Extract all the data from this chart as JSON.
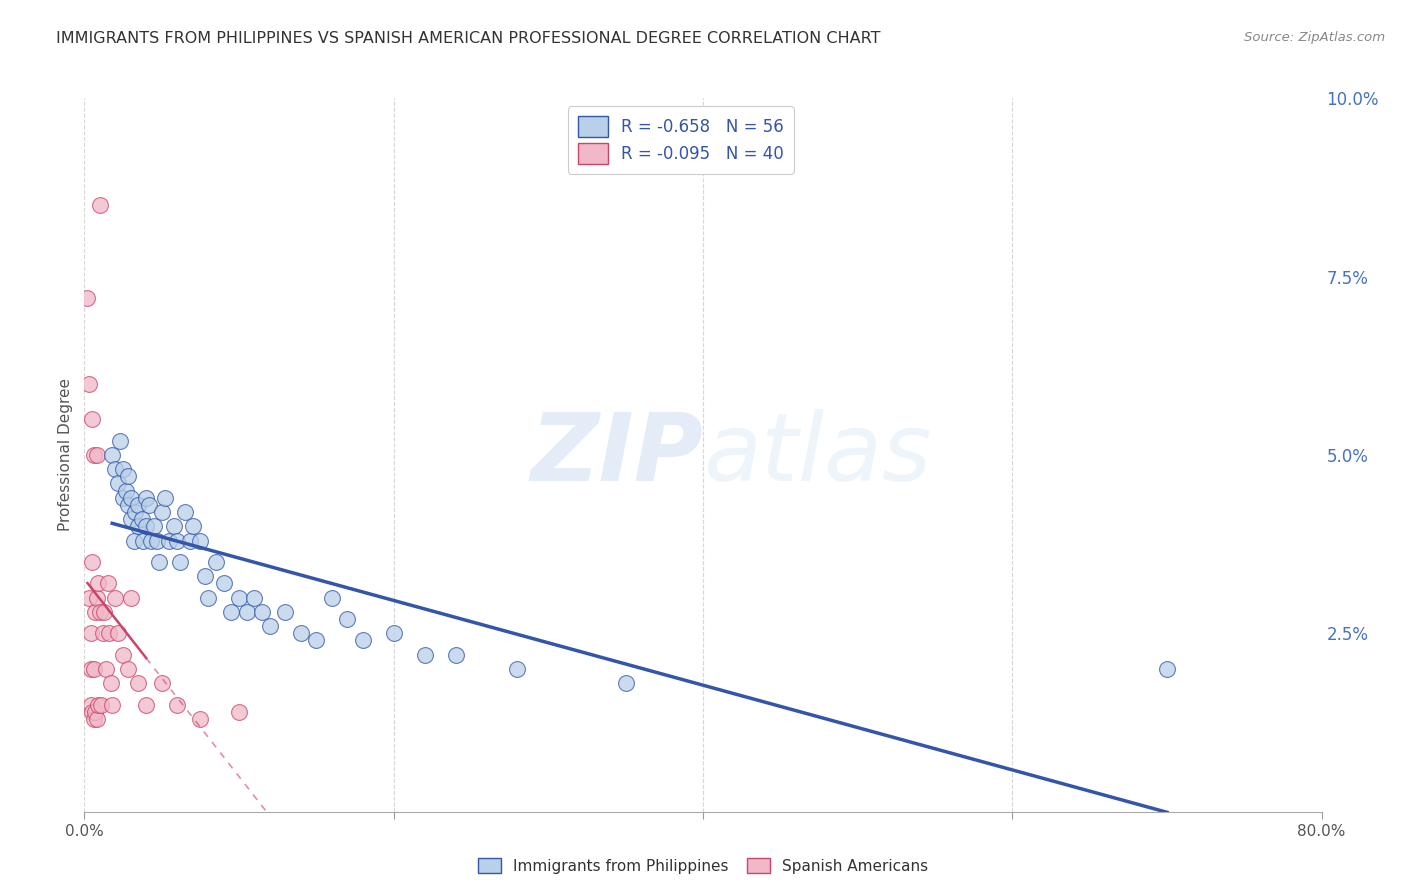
{
  "title": "IMMIGRANTS FROM PHILIPPINES VS SPANISH AMERICAN PROFESSIONAL DEGREE CORRELATION CHART",
  "source": "Source: ZipAtlas.com",
  "ylabel": "Professional Degree",
  "watermark_zip": "ZIP",
  "watermark_atlas": "atlas",
  "legend1_label": "R = -0.658   N = 56",
  "legend2_label": "R = -0.095   N = 40",
  "legend1_color": "#b8d0e8",
  "legend2_color": "#f0b8c8",
  "line1_color": "#3355aa",
  "line2_color": "#cc4466",
  "background_color": "#ffffff",
  "grid_color": "#cccccc",
  "ytick_color": "#4472C4",
  "xlim": [
    0.0,
    0.8
  ],
  "ylim": [
    0.0,
    0.1
  ],
  "yticks": [
    0.0,
    0.025,
    0.05,
    0.075,
    0.1
  ],
  "ytick_labels": [
    "",
    "2.5%",
    "5.0%",
    "7.5%",
    "10.0%"
  ],
  "blue_x": [
    0.018,
    0.02,
    0.022,
    0.023,
    0.025,
    0.025,
    0.027,
    0.028,
    0.028,
    0.03,
    0.03,
    0.032,
    0.033,
    0.035,
    0.035,
    0.037,
    0.038,
    0.04,
    0.04,
    0.042,
    0.043,
    0.045,
    0.047,
    0.048,
    0.05,
    0.052,
    0.055,
    0.058,
    0.06,
    0.062,
    0.065,
    0.068,
    0.07,
    0.075,
    0.078,
    0.08,
    0.085,
    0.09,
    0.095,
    0.1,
    0.105,
    0.11,
    0.115,
    0.12,
    0.13,
    0.14,
    0.15,
    0.16,
    0.17,
    0.18,
    0.2,
    0.22,
    0.24,
    0.28,
    0.35,
    0.7
  ],
  "blue_y": [
    0.05,
    0.048,
    0.046,
    0.052,
    0.048,
    0.044,
    0.045,
    0.047,
    0.043,
    0.044,
    0.041,
    0.038,
    0.042,
    0.043,
    0.04,
    0.041,
    0.038,
    0.044,
    0.04,
    0.043,
    0.038,
    0.04,
    0.038,
    0.035,
    0.042,
    0.044,
    0.038,
    0.04,
    0.038,
    0.035,
    0.042,
    0.038,
    0.04,
    0.038,
    0.033,
    0.03,
    0.035,
    0.032,
    0.028,
    0.03,
    0.028,
    0.03,
    0.028,
    0.026,
    0.028,
    0.025,
    0.024,
    0.03,
    0.027,
    0.024,
    0.025,
    0.022,
    0.022,
    0.02,
    0.018,
    0.02
  ],
  "pink_x": [
    0.002,
    0.003,
    0.003,
    0.004,
    0.004,
    0.004,
    0.005,
    0.005,
    0.005,
    0.006,
    0.006,
    0.006,
    0.007,
    0.007,
    0.008,
    0.008,
    0.008,
    0.009,
    0.009,
    0.01,
    0.01,
    0.011,
    0.012,
    0.013,
    0.014,
    0.015,
    0.016,
    0.017,
    0.018,
    0.02,
    0.022,
    0.025,
    0.028,
    0.03,
    0.035,
    0.04,
    0.05,
    0.06,
    0.075,
    0.1
  ],
  "pink_y": [
    0.072,
    0.06,
    0.03,
    0.025,
    0.02,
    0.015,
    0.055,
    0.035,
    0.014,
    0.05,
    0.02,
    0.013,
    0.028,
    0.014,
    0.05,
    0.03,
    0.013,
    0.032,
    0.015,
    0.085,
    0.028,
    0.015,
    0.025,
    0.028,
    0.02,
    0.032,
    0.025,
    0.018,
    0.015,
    0.03,
    0.025,
    0.022,
    0.02,
    0.03,
    0.018,
    0.015,
    0.018,
    0.015,
    0.013,
    0.014
  ]
}
